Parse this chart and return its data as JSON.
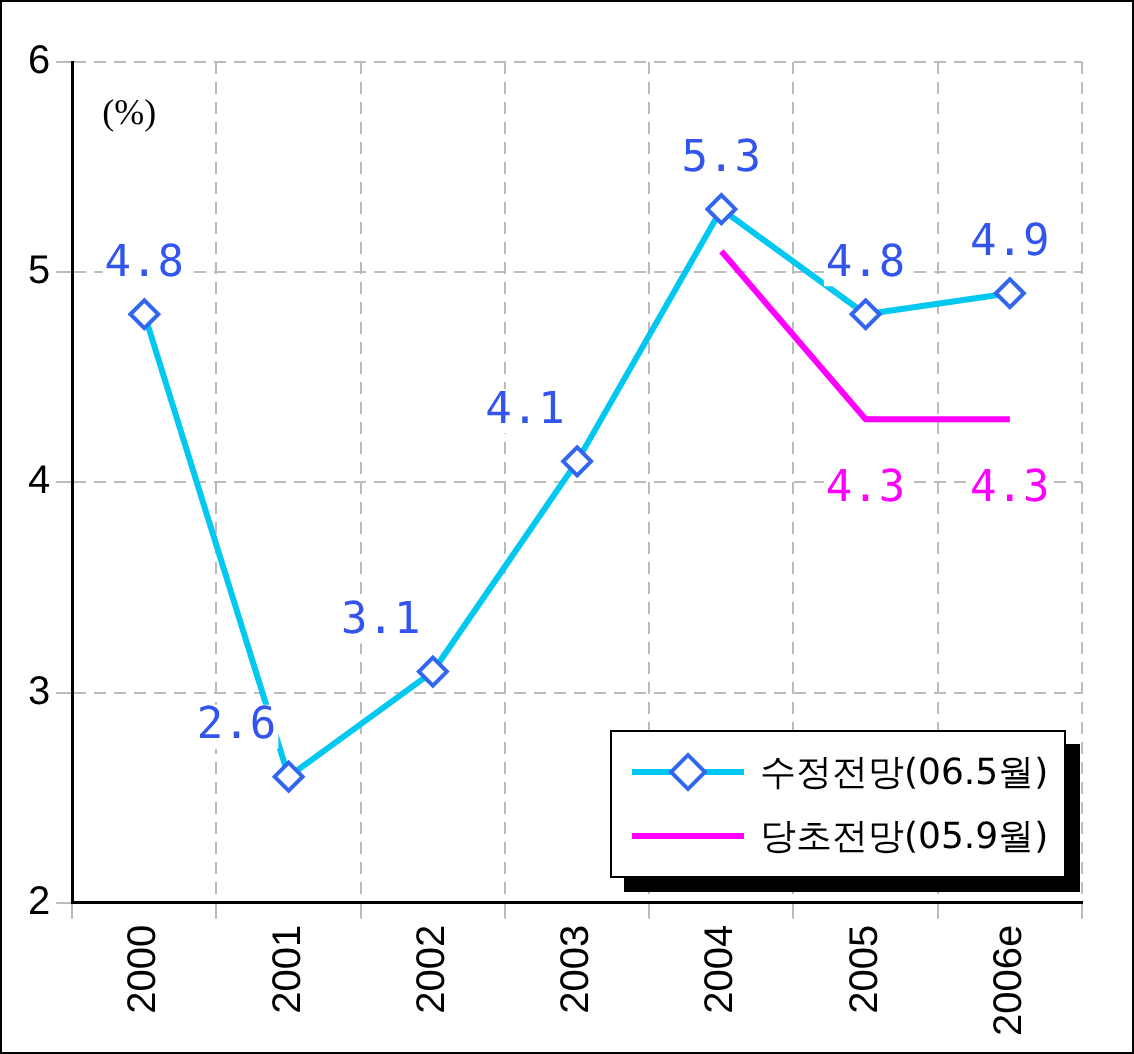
{
  "chart_data": {
    "type": "line",
    "categories": [
      "2000",
      "2001",
      "2002",
      "2003",
      "2004",
      "2005",
      "2006e"
    ],
    "series": [
      {
        "name": "수정전망(06.5월)",
        "color": "#00c8f0",
        "values": [
          4.8,
          2.6,
          3.1,
          4.1,
          5.3,
          4.8,
          4.9
        ],
        "marker": "diamond",
        "value_labels": [
          "4.8",
          "2.6",
          "3.1",
          "4.1",
          "5.3",
          "4.8",
          "4.9"
        ]
      },
      {
        "name": "당초전망(05.9월)",
        "color": "#ff00ff",
        "values": [
          null,
          null,
          null,
          null,
          5.1,
          4.3,
          4.3
        ],
        "marker": "none",
        "value_labels": [
          null,
          null,
          null,
          null,
          null,
          "4.3",
          "4.3"
        ]
      }
    ],
    "ylim": [
      2,
      6
    ],
    "yticks": [
      2,
      3,
      4,
      5,
      6
    ],
    "grid": true,
    "legend": "bottom right",
    "line_style": "solid",
    "annotations": [
      "(%)"
    ]
  }
}
